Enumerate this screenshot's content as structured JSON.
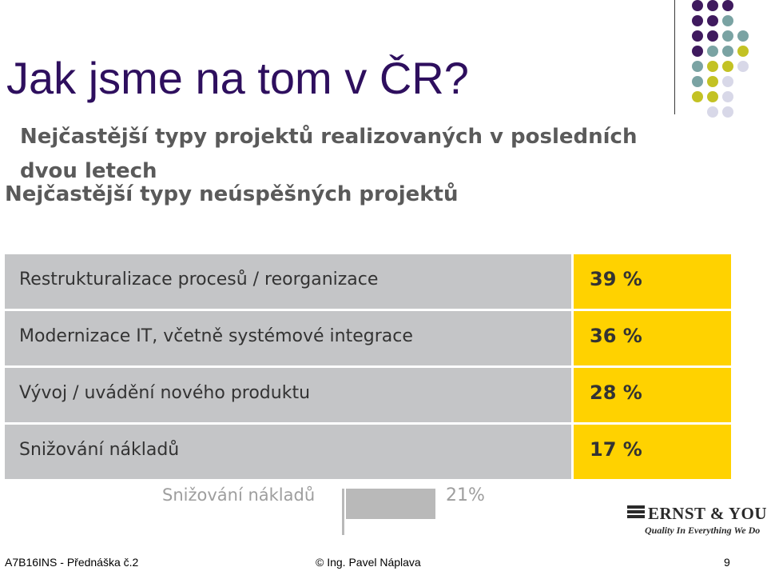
{
  "slide": {
    "title": "Jak jsme na tom v ČR?",
    "subtitle_line1": "Nejčastější typy projektů realizovaných v posledních dvou letech",
    "subtitle_line2": "Nejčastější typy neúspěšných projektů"
  },
  "table": {
    "rows": [
      {
        "label": "Restrukturalizace procesů / reorganizace",
        "value": "39 %"
      },
      {
        "label": "Modernizace IT, včetně systémové integrace",
        "value": "36 %"
      },
      {
        "label": "Vývoj / uvádění nového produktu",
        "value": "28 %"
      },
      {
        "label": "Snižování nákladů",
        "value": "17 %"
      }
    ]
  },
  "ghost": {
    "label": "Snižování nákladů",
    "value": "21%"
  },
  "logo": {
    "name": "ERNST & YOUNG",
    "tagline": "Quality In Everything We Do"
  },
  "footer": {
    "left": "A7B16INS - Přednáška č.2",
    "center": "© Ing. Pavel Náplava",
    "page": "9"
  },
  "colors": {
    "title": "#2e0f5e",
    "row_grey": "#c4c5c7",
    "value_yellow": "#ffd200",
    "dot_purple": "#3f1a5e",
    "dot_teal": "#7aa3a3",
    "dot_olive": "#c3c224",
    "dot_lavender": "#d8d8e8"
  }
}
